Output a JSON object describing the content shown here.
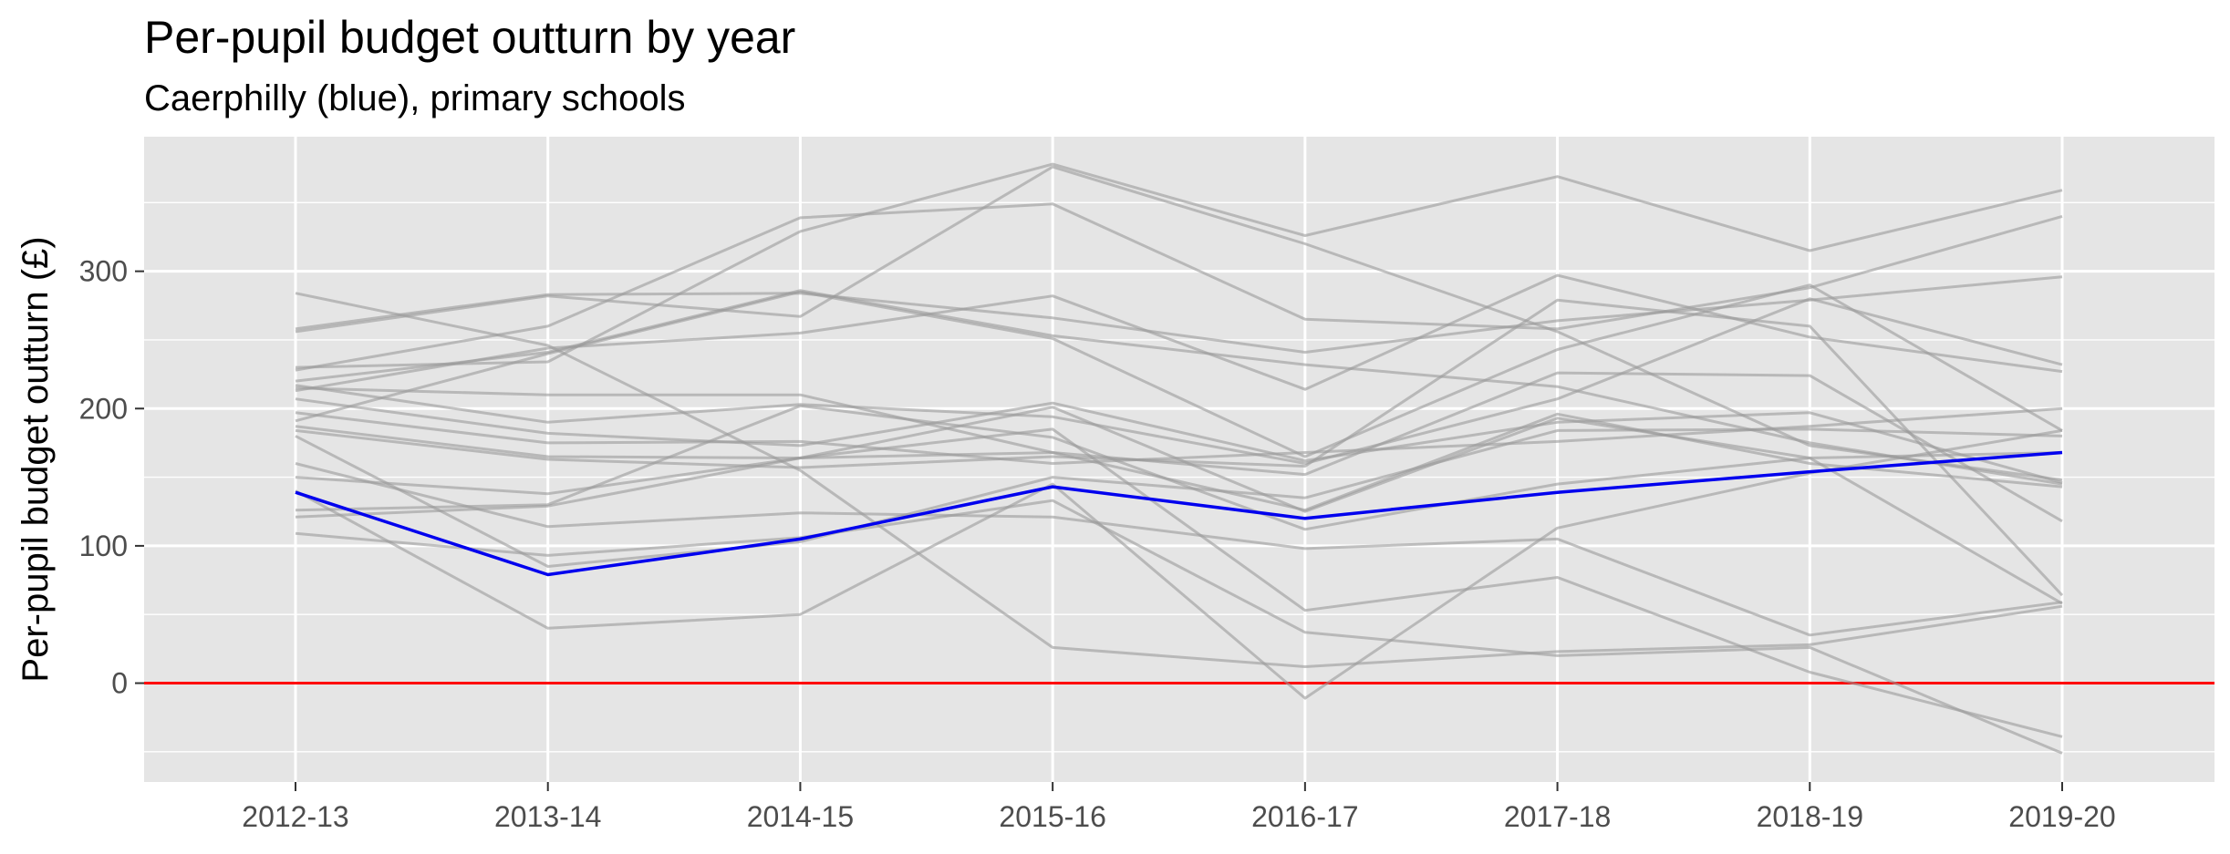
{
  "chart_data": {
    "type": "line",
    "title": "Per-pupil budget outturn by year",
    "subtitle": "Caerphilly (blue), primary schools",
    "xlabel": "",
    "ylabel": "Per-pupil budget outturn (£)",
    "categories": [
      "2012-13",
      "2013-14",
      "2014-15",
      "2015-16",
      "2016-17",
      "2017-18",
      "2018-19",
      "2019-20"
    ],
    "yticks": [
      0,
      100,
      200,
      300
    ],
    "ylim": [
      -72,
      398
    ],
    "grid": true,
    "reference_line": {
      "y": 0,
      "color": "#ff0000"
    },
    "highlight_color": "#0000ee",
    "other_color": "#999999",
    "highlight_series": {
      "values": [
        139,
        79,
        105,
        143,
        120,
        139,
        154,
        168
      ]
    },
    "series": [
      {
        "values": [
          284,
          246,
          155,
          26,
          12,
          23,
          28,
          56
        ]
      },
      {
        "values": [
          258,
          283,
          284,
          266,
          241,
          264,
          279,
          296
        ]
      },
      {
        "values": [
          256,
          282,
          267,
          376,
          320,
          256,
          173,
          148
        ]
      },
      {
        "values": [
          230,
          234,
          329,
          378,
          326,
          369,
          315,
          359
        ]
      },
      {
        "values": [
          228,
          260,
          339,
          349,
          265,
          258,
          288,
          340
        ]
      },
      {
        "values": [
          220,
          241,
          286,
          253,
          232,
          216,
          175,
          145
        ]
      },
      {
        "values": [
          217,
          190,
          203,
          194,
          160,
          207,
          280,
          232
        ]
      },
      {
        "values": [
          213,
          244,
          255,
          282,
          214,
          297,
          252,
          227
        ]
      },
      {
        "values": [
          207,
          182,
          173,
          204,
          162,
          190,
          197,
          146
        ]
      },
      {
        "values": [
          197,
          175,
          176,
          160,
          168,
          176,
          187,
          200
        ]
      },
      {
        "values": [
          191,
          240,
          285,
          251,
          165,
          243,
          290,
          184
        ]
      },
      {
        "values": [
          187,
          165,
          164,
          168,
          152,
          226,
          224,
          118
        ]
      },
      {
        "values": [
          184,
          163,
          157,
          165,
          158,
          279,
          260,
          64
        ]
      },
      {
        "values": [
          160,
          114,
          124,
          121,
          98,
          105,
          35,
          59
        ]
      },
      {
        "values": [
          150,
          138,
          164,
          201,
          125,
          193,
          164,
          58
        ]
      },
      {
        "values": [
          126,
          130,
          202,
          179,
          112,
          145,
          164,
          168
        ]
      },
      {
        "values": [
          121,
          129,
          164,
          185,
          53,
          77,
          8,
          -39
        ]
      },
      {
        "values": [
          109,
          93,
          106,
          133,
          37,
          20,
          26,
          -51
        ]
      },
      {
        "values": [
          140,
          40,
          50,
          145,
          -11,
          113,
          153,
          184
        ]
      },
      {
        "values": [
          180,
          85,
          103,
          150,
          135,
          184,
          185,
          180
        ]
      },
      {
        "values": [
          215,
          210,
          210,
          168,
          126,
          196,
          160,
          143
        ]
      }
    ]
  }
}
